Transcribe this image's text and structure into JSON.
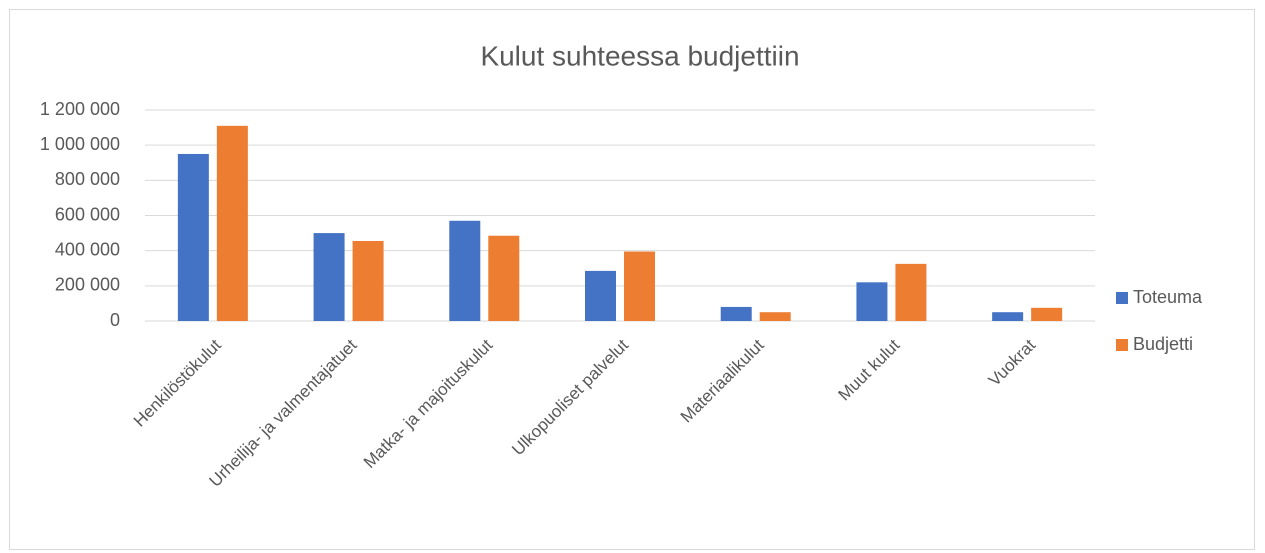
{
  "chart_data": {
    "type": "bar",
    "title": "Kulut suhteessa budjettiin",
    "categories": [
      "Henkilöstökulut",
      "Urheilija- ja valmentajatuet",
      "Matka- ja majoituskulut",
      "Ulkopuoliset palvelut",
      "Materiaalikulut",
      "Muut kulut",
      "Vuokrat"
    ],
    "series": [
      {
        "name": "Toteuma",
        "color": "#4472c4",
        "values": [
          950000,
          500000,
          570000,
          285000,
          80000,
          220000,
          50000
        ]
      },
      {
        "name": "Budjetti",
        "color": "#ed7d31",
        "values": [
          1110000,
          455000,
          485000,
          395000,
          50000,
          325000,
          75000
        ]
      }
    ],
    "ylim": [
      0,
      1200000
    ],
    "yticks": [
      0,
      {
        "value": 200000,
        "label": "200 000"
      },
      {
        "value": 400000,
        "label": "400 000"
      },
      {
        "value": 600000,
        "label": "600 000"
      },
      {
        "value": 800000,
        "label": "800 000"
      },
      {
        "value": 1000000,
        "label": "1 000 000"
      },
      {
        "value": 1200000,
        "label": "1 200 000"
      }
    ],
    "grid": true,
    "legend": "right"
  }
}
